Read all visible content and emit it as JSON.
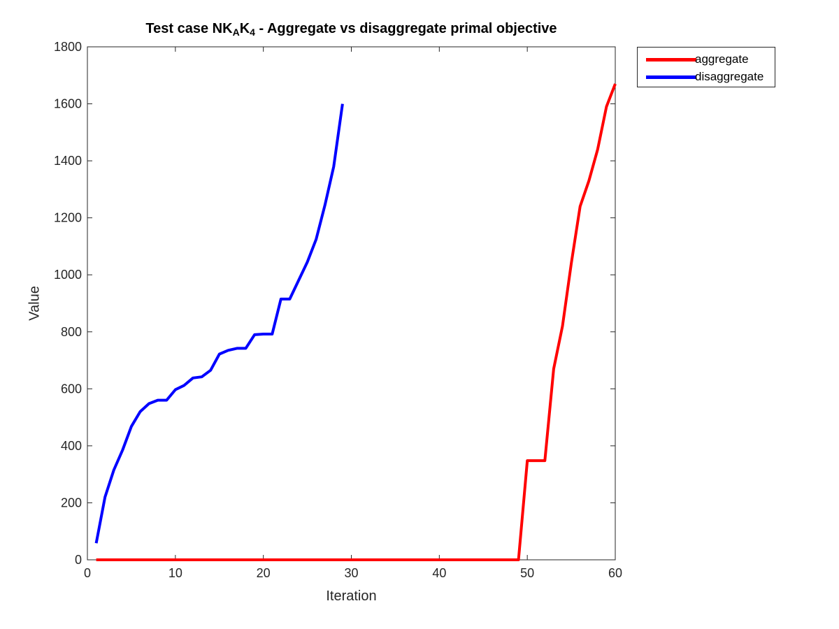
{
  "chart_data": {
    "type": "line",
    "title_main": "Test case NK",
    "title_sub1": "A",
    "title_mid": "K",
    "title_sub2": "4",
    "title_rest": " - Aggregate vs disaggregate primal objective",
    "xlabel": "Iteration",
    "ylabel": "Value",
    "xlim": [
      0,
      60
    ],
    "ylim": [
      0,
      1800
    ],
    "xticks": [
      0,
      10,
      20,
      30,
      40,
      50,
      60
    ],
    "yticks": [
      0,
      200,
      400,
      600,
      800,
      1000,
      1200,
      1400,
      1600,
      1800
    ],
    "grid": false,
    "legend_position": "outside top-right",
    "series": [
      {
        "name": "aggregate",
        "color": "#ff0000",
        "x": [
          1,
          2,
          3,
          4,
          5,
          6,
          7,
          8,
          9,
          10,
          11,
          12,
          13,
          14,
          15,
          16,
          17,
          18,
          19,
          20,
          21,
          22,
          23,
          24,
          25,
          26,
          27,
          28,
          29,
          30,
          31,
          32,
          33,
          34,
          35,
          36,
          37,
          38,
          39,
          40,
          41,
          42,
          43,
          44,
          45,
          46,
          47,
          48,
          49,
          50,
          51,
          52,
          53,
          54,
          55,
          56,
          57,
          58,
          59,
          60
        ],
        "y": [
          0,
          0,
          0,
          0,
          0,
          0,
          0,
          0,
          0,
          0,
          0,
          0,
          0,
          0,
          0,
          0,
          0,
          0,
          0,
          0,
          0,
          0,
          0,
          0,
          0,
          0,
          0,
          0,
          0,
          0,
          0,
          0,
          0,
          0,
          0,
          0,
          0,
          0,
          0,
          0,
          0,
          0,
          0,
          0,
          0,
          0,
          0,
          0,
          0,
          348,
          348,
          348,
          670,
          820,
          1040,
          1240,
          1330,
          1440,
          1590,
          1670
        ]
      },
      {
        "name": "disaggregate",
        "color": "#0000ff",
        "x": [
          1,
          2,
          3,
          4,
          5,
          6,
          7,
          8,
          9,
          10,
          11,
          12,
          13,
          14,
          15,
          16,
          17,
          18,
          19,
          20,
          21,
          22,
          23,
          24,
          25,
          26,
          27,
          28,
          29
        ],
        "y": [
          58,
          220,
          315,
          385,
          468,
          520,
          548,
          560,
          560,
          597,
          612,
          638,
          642,
          665,
          722,
          735,
          742,
          742,
          790,
          792,
          792,
          915,
          915,
          980,
          1045,
          1125,
          1245,
          1380,
          1600
        ]
      }
    ]
  }
}
